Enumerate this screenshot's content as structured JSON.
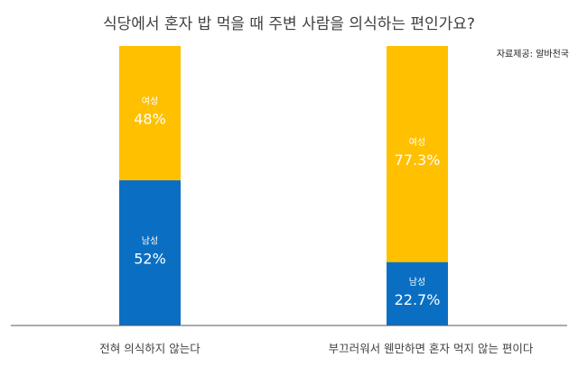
{
  "chart_data": {
    "type": "bar",
    "stacked": true,
    "title": "식당에서 혼자 밥 먹을 때 주변 사람을 의식하는 편인가요?",
    "source": "자료제공: 알바천국",
    "categories": [
      "전혀 의식하지 않는다",
      "부끄러워서 웬만하면 혼자 먹지 않는 편이다"
    ],
    "ylim": [
      0,
      100
    ],
    "grid": false,
    "series": [
      {
        "name": "남성",
        "values": [
          52,
          22.7
        ],
        "labels": [
          "52%",
          "22.7%"
        ],
        "color": "#0A6FC2"
      },
      {
        "name": "여성",
        "values": [
          48,
          77.3
        ],
        "labels": [
          "48%",
          "77.3%"
        ],
        "color": "#FFC000"
      }
    ],
    "axis_color": "#595959",
    "label_color": "#ffffff"
  }
}
